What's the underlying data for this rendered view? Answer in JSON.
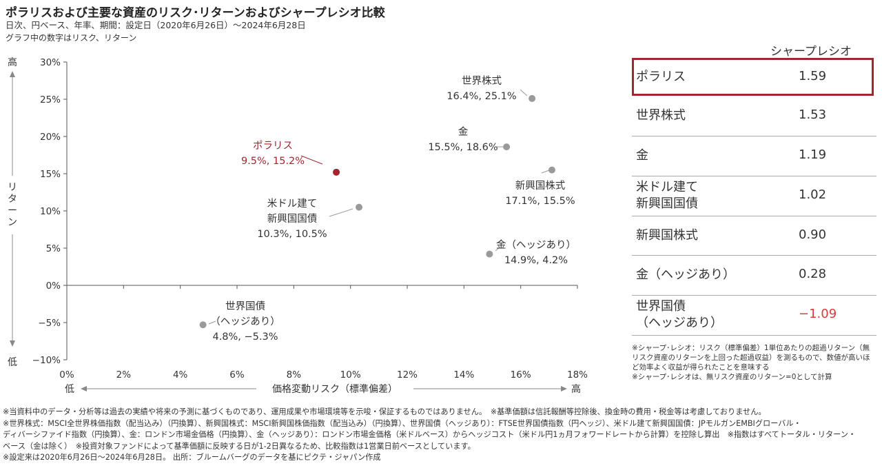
{
  "header": {
    "title": "ポラリスおよび主要な資産のリスク･リターンおよびシャープレシオ比較",
    "subtitle": "日次、円ベース、年率、期間：設定日（2020年6月26日）～2024年6月28日",
    "note": "グラフ中の数字はリスク、リターン"
  },
  "chart_data": {
    "type": "scatter",
    "xlabel": "価格変動リスク（標準偏差）",
    "ylabel": "リターン",
    "x_low": "低",
    "x_high": "高",
    "y_low": "低",
    "y_high": "高",
    "xlim": [
      0,
      18
    ],
    "ylim": [
      -10,
      30
    ],
    "x_ticks": [
      0,
      2,
      4,
      6,
      8,
      10,
      12,
      14,
      16,
      18
    ],
    "y_ticks": [
      -10,
      -5,
      0,
      5,
      10,
      15,
      20,
      25,
      30
    ],
    "x_tick_labels": [
      "0%",
      "2%",
      "4%",
      "6%",
      "8%",
      "10%",
      "12%",
      "14%",
      "16%",
      "18%"
    ],
    "y_tick_labels": [
      "−10%",
      "−5%",
      "0%",
      "5%",
      "10%",
      "15%",
      "20%",
      "25%",
      "30%"
    ],
    "grid": false,
    "points": [
      {
        "name": "ポラリス",
        "name_lines": [
          "ポラリス"
        ],
        "value_label": "9.5%, 15.2%",
        "x": 9.5,
        "y": 15.2,
        "highlight": true
      },
      {
        "name": "世界株式",
        "name_lines": [
          "世界株式"
        ],
        "value_label": "16.4%, 25.1%",
        "x": 16.4,
        "y": 25.1
      },
      {
        "name": "金",
        "name_lines": [
          "金"
        ],
        "value_label": "15.5%, 18.6%",
        "x": 15.5,
        "y": 18.6
      },
      {
        "name": "新興国株式",
        "name_lines": [
          "新興国株式"
        ],
        "value_label": "17.1%, 15.5%",
        "x": 17.1,
        "y": 15.5
      },
      {
        "name": "米ドル建て新興国国債",
        "name_lines": [
          "米ドル建て",
          "新興国国債"
        ],
        "value_label": "10.3%, 10.5%",
        "x": 10.3,
        "y": 10.5
      },
      {
        "name": "金（ヘッジあり）",
        "name_lines": [
          "金（ヘッジあり）"
        ],
        "value_label": "14.9%, 4.2%",
        "x": 14.9,
        "y": 4.2
      },
      {
        "name": "世界国債（ヘッジあり）",
        "name_lines": [
          "世界国債",
          "（ヘッジあり）"
        ],
        "value_label": "4.8%, −5.3%",
        "x": 4.8,
        "y": -5.3
      }
    ],
    "colors": {
      "highlight": "#a02630",
      "point": "#9a9a9a",
      "axis": "#555555"
    }
  },
  "sharpe": {
    "header": "シャープレシオ",
    "rows": [
      {
        "name_lines": [
          "ポラリス"
        ],
        "value": "1.59",
        "highlight": true
      },
      {
        "name_lines": [
          "世界株式"
        ],
        "value": "1.53"
      },
      {
        "name_lines": [
          "金"
        ],
        "value": "1.19"
      },
      {
        "name_lines": [
          "米ドル建て",
          "新興国国債"
        ],
        "value": "1.02"
      },
      {
        "name_lines": [
          "新興国株式"
        ],
        "value": "0.90"
      },
      {
        "name_lines": [
          "金（ヘッジあり）"
        ],
        "value": "0.28"
      },
      {
        "name_lines": [
          "世界国債",
          "（ヘッジあり）"
        ],
        "value": "−1.09",
        "negative": true
      }
    ],
    "negative_color": "#d93a3a",
    "highlight_color": "#a02630",
    "note": "※シャープ･レシオ：リスク（標準偏差）1単位あたりの超過リターン（無リスク資産のリターンを上回った超過収益）を測るもので、数値が高いほど効率よく収益が得られたことを意味する\n※シャープ･レシオは、無リスク資産のリターン=0として計算"
  },
  "footnotes": [
    "※当資料中のデータ・分析等は過去の実績や将来の予測に基づくものであり、運用成果や市場環境等を示唆・保証するものではありません。　※基準価額は信託報酬等控除後、換金時の費用・税金等は考慮しておりません。",
    "※世界株式：MSCI全世界株価指数（配当込み）（円換算）、新興国株式：MSCI新興国株価指数（配当込み）（円換算）、世界国債（ヘッジあり）：FTSE世界国債指数（円ヘッジ）、米ドル建て新興国国債：JPモルガンEMBIグローバル・",
    "ディバーシファイド指数（円換算）、金：ロンドン市場金価格（円換算）、金（ヘッジあり）：ロンドン市場金価格（米ドルベース）からヘッジコスト（米ドル円1ヵ月フォワードレートから計算）を控除し算出　※指数はすべてトータル・リターン・",
    "ベース（金は除く）　※投資対象ファンドによって基準価額に反映する日が1-2日異なるため、比較指数は1営業日前ベースとしています。",
    "※設定来は2020年6月26日～2024年6月28日。 出所：ブルームバーグのデータを基にピクテ・ジャパン作成"
  ]
}
